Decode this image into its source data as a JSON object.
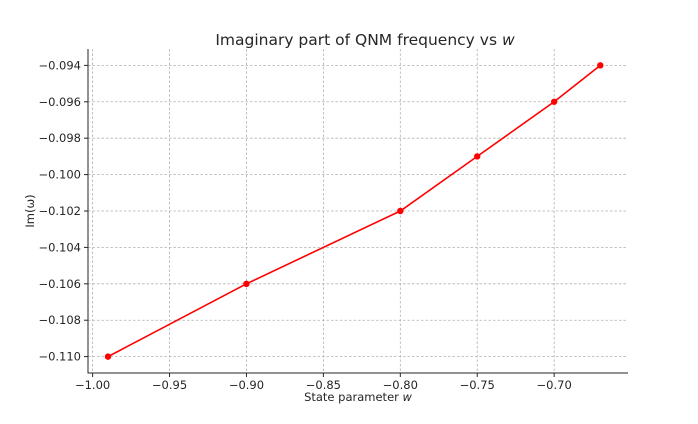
{
  "chart_data": {
    "type": "line",
    "title": "Imaginary part of QNM frequency vs ",
    "title_italic": "w",
    "xlabel": "State parameter ",
    "xlabel_italic": "w",
    "ylabel": "Im(ω)",
    "xlim": [
      -1.003,
      -0.652
    ],
    "ylim": [
      -0.1109,
      -0.0931
    ],
    "xticks": [
      -1.0,
      -0.95,
      -0.9,
      -0.85,
      -0.8,
      -0.75,
      -0.7
    ],
    "xtick_labels": [
      "−1.00",
      "−0.95",
      "−0.90",
      "−0.85",
      "−0.80",
      "−0.75",
      "−0.70"
    ],
    "yticks": [
      -0.11,
      -0.108,
      -0.106,
      -0.104,
      -0.102,
      -0.1,
      -0.098,
      -0.096,
      -0.094
    ],
    "ytick_labels": [
      "−0.110",
      "−0.108",
      "−0.106",
      "−0.104",
      "−0.102",
      "−0.100",
      "−0.098",
      "−0.096",
      "−0.094"
    ],
    "grid": true,
    "series": [
      {
        "color": "#ff0000",
        "x": [
          -0.99,
          -0.9,
          -0.8,
          -0.75,
          -0.7,
          -0.67
        ],
        "y": [
          -0.11,
          -0.106,
          -0.102,
          -0.099,
          -0.096,
          -0.094
        ]
      }
    ]
  }
}
